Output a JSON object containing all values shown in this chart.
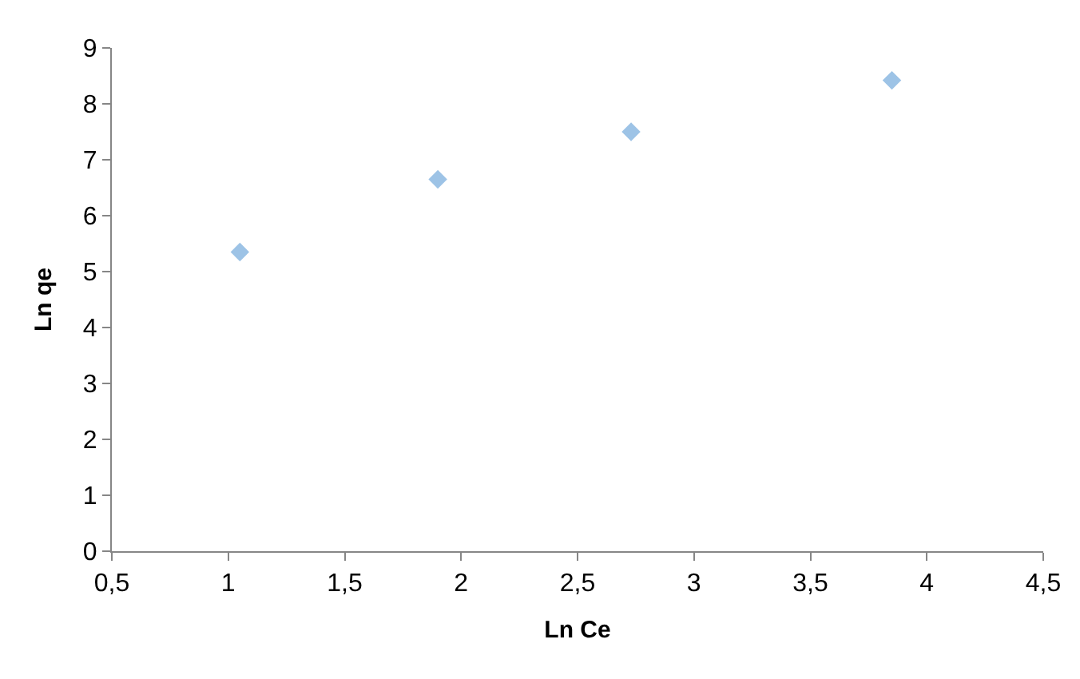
{
  "chart_data": {
    "type": "scatter",
    "xlabel": "Ln Ce",
    "ylabel": "Ln qe",
    "marker": "diamond",
    "grid": false,
    "x": [
      1.05,
      1.9,
      2.73,
      3.85
    ],
    "series": [
      {
        "color": "#9dc3e6",
        "values": [
          5.35,
          6.65,
          7.5,
          8.42
        ]
      }
    ],
    "xlim": [
      0.5,
      4.5
    ],
    "xticks": [
      {
        "value": 0.5,
        "label": "0,5"
      },
      1,
      {
        "value": 1.5,
        "label": "1,5"
      },
      2,
      {
        "value": 2.5,
        "label": "2,5"
      },
      3,
      {
        "value": 3.5,
        "label": "3,5"
      },
      4,
      {
        "value": 4.5,
        "label": "4,5"
      }
    ],
    "ylim": [
      0,
      9
    ],
    "yticks": [
      0,
      1,
      2,
      3,
      4,
      5,
      6,
      7,
      8,
      9
    ]
  }
}
